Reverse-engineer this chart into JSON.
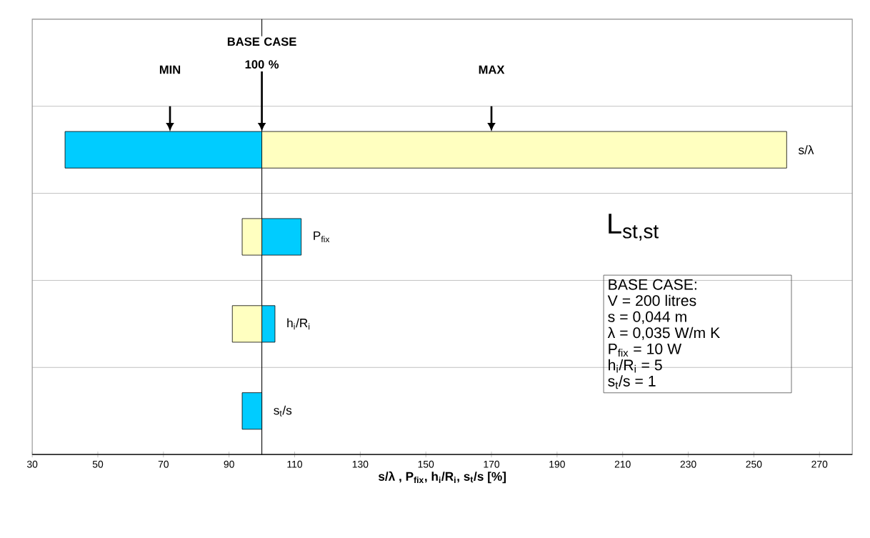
{
  "chart_data": {
    "type": "bar",
    "orientation": "horizontal",
    "categories": [
      null,
      "s/λ",
      "P$_{fix}$",
      "h$_{i}$/R$_{i}$",
      "s$_{t}$/s"
    ],
    "series": [
      {
        "color": "#00ccff",
        "base": [
          null,
          40,
          100,
          100,
          94
        ],
        "values": [
          null,
          60,
          12,
          4,
          6
        ]
      },
      {
        "color": "#ffffc0",
        "base": [
          null,
          100,
          94,
          91,
          null
        ],
        "values": [
          null,
          160,
          6,
          9,
          null
        ]
      }
    ],
    "xlabel": "s/λ , P$_{fix}$, h$_{i}$/R$_{i}$, s$_{t}$/s [%]",
    "xlim": [
      30,
      280
    ],
    "xticks": [
      30,
      50,
      70,
      90,
      110,
      130,
      150,
      170,
      190,
      210,
      230,
      250,
      270
    ],
    "grid": "y",
    "ref_lines": [
      {
        "axis": "x",
        "value": 100,
        "label": "BASE CASE 100 %",
        "color": "#000000"
      }
    ],
    "annotations": [
      "MIN",
      "MAX",
      "L$_{st,st}$",
      "BASE CASE:",
      "V = 200 litres",
      "s = 0,044 m",
      "λ = 0,035 W/m K",
      "P$_{fix}$ = 10 W",
      "h$_{i}$/R$_{i}$ = 5",
      "s$_{t}$/s = 1"
    ]
  }
}
